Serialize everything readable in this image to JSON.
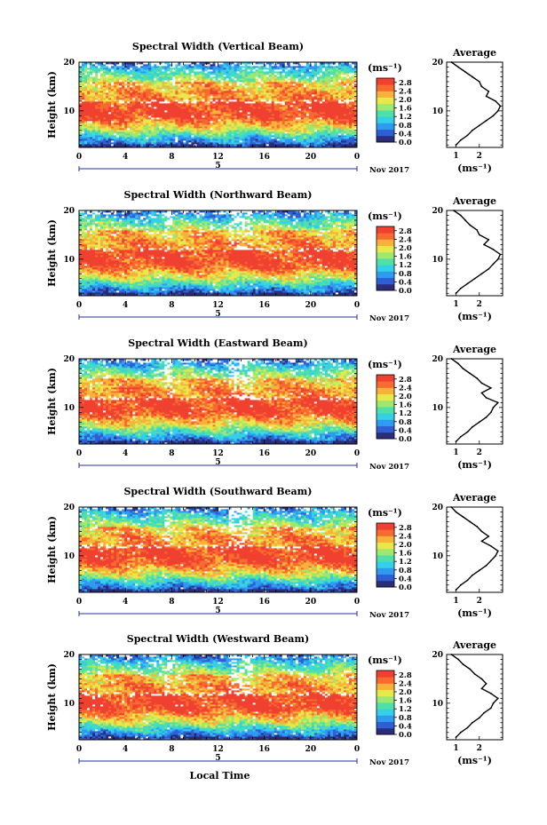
{
  "chart_data": [
    {
      "type": "heatmap",
      "title": "Spectral Width (Vertical Beam)",
      "ylabel": "Height (km)",
      "xticks": [
        "0",
        "4",
        "8",
        "12",
        "16",
        "20",
        "0"
      ],
      "yticks": [
        "10",
        "20"
      ],
      "xlim": [
        0,
        24
      ],
      "ylim": [
        2.5,
        20
      ],
      "date_day": "5",
      "date_label": "Nov 2017",
      "colorbar": {
        "unit": "(ms⁻¹)",
        "ticks": [
          "0.0",
          "0.4",
          "0.8",
          "1.2",
          "1.6",
          "2.0",
          "2.4",
          "2.8"
        ],
        "range": [
          0,
          3.0
        ]
      },
      "profile": {
        "title": "Average",
        "xlabel": "(ms⁻¹)",
        "xticks": [
          "1",
          "2"
        ],
        "yticks": [
          "10",
          "20"
        ],
        "xlim": [
          0.6,
          3.0
        ],
        "height_km": [
          3,
          4,
          5,
          6,
          7,
          8,
          9,
          10,
          11,
          12,
          13,
          14,
          15,
          16,
          17,
          18,
          19,
          20
        ],
        "width_ms": [
          1.0,
          1.2,
          1.5,
          1.7,
          2.0,
          2.3,
          2.6,
          2.8,
          2.9,
          2.7,
          2.3,
          2.4,
          2.1,
          2.0,
          1.7,
          1.4,
          1.1,
          0.8
        ]
      }
    },
    {
      "type": "heatmap",
      "title": "Spectral Width (Northward Beam)",
      "ylabel": "Height (km)",
      "xticks": [
        "0",
        "4",
        "8",
        "12",
        "16",
        "20",
        "0"
      ],
      "yticks": [
        "10",
        "20"
      ],
      "xlim": [
        0,
        24
      ],
      "ylim": [
        2.5,
        20
      ],
      "date_day": "5",
      "date_label": "Nov 2017",
      "colorbar": {
        "unit": "(ms⁻¹)",
        "ticks": [
          "0.0",
          "0.4",
          "0.8",
          "1.2",
          "1.6",
          "2.0",
          "2.4",
          "2.8"
        ],
        "range": [
          0,
          3.0
        ]
      },
      "profile": {
        "title": "Average",
        "xlabel": "(ms⁻¹)",
        "xticks": [
          "1",
          "2"
        ],
        "yticks": [
          "10",
          "20"
        ],
        "xlim": [
          0.6,
          3.0
        ],
        "height_km": [
          3,
          4,
          5,
          6,
          7,
          8,
          9,
          10,
          11,
          12,
          13,
          14,
          15,
          16,
          17,
          18,
          19,
          20
        ],
        "width_ms": [
          1.0,
          1.2,
          1.5,
          1.8,
          2.1,
          2.4,
          2.6,
          2.8,
          2.9,
          2.6,
          2.2,
          2.4,
          2.0,
          1.9,
          1.6,
          1.4,
          1.2,
          0.9
        ]
      }
    },
    {
      "type": "heatmap",
      "title": "Spectral Width (Eastward Beam)",
      "ylabel": "Height (km)",
      "xticks": [
        "0",
        "4",
        "8",
        "12",
        "16",
        "20",
        "0"
      ],
      "yticks": [
        "10",
        "20"
      ],
      "xlim": [
        0,
        24
      ],
      "ylim": [
        2.5,
        20
      ],
      "date_day": "5",
      "date_label": "Nov 2017",
      "colorbar": {
        "unit": "(ms⁻¹)",
        "ticks": [
          "0.0",
          "0.4",
          "0.8",
          "1.2",
          "1.6",
          "2.0",
          "2.4",
          "2.8"
        ],
        "range": [
          0,
          3.0
        ]
      },
      "profile": {
        "title": "Average",
        "xlabel": "(ms⁻¹)",
        "xticks": [
          "1",
          "2"
        ],
        "yticks": [
          "10",
          "20"
        ],
        "xlim": [
          0.6,
          3.0
        ],
        "height_km": [
          3,
          4,
          5,
          6,
          7,
          8,
          9,
          10,
          11,
          12,
          13,
          14,
          15,
          16,
          17,
          18,
          19,
          20
        ],
        "width_ms": [
          1.0,
          1.2,
          1.5,
          1.7,
          2.0,
          2.3,
          2.5,
          2.6,
          2.8,
          2.3,
          2.1,
          2.5,
          2.1,
          1.9,
          1.6,
          1.3,
          1.1,
          0.8
        ]
      }
    },
    {
      "type": "heatmap",
      "title": "Spectral Width (Southward Beam)",
      "ylabel": "Height (km)",
      "xticks": [
        "0",
        "4",
        "8",
        "12",
        "16",
        "20",
        "0"
      ],
      "yticks": [
        "10",
        "20"
      ],
      "xlim": [
        0,
        24
      ],
      "ylim": [
        2.5,
        20
      ],
      "date_day": "5",
      "date_label": "Nov 2017",
      "colorbar": {
        "unit": "(ms⁻¹)",
        "ticks": [
          "0.0",
          "0.4",
          "0.8",
          "1.2",
          "1.6",
          "2.0",
          "2.4",
          "2.8"
        ],
        "range": [
          0,
          3.0
        ]
      },
      "profile": {
        "title": "Average",
        "xlabel": "(ms⁻¹)",
        "xticks": [
          "1",
          "2"
        ],
        "yticks": [
          "10",
          "20"
        ],
        "xlim": [
          0.6,
          3.0
        ],
        "height_km": [
          3,
          4,
          5,
          6,
          7,
          8,
          9,
          10,
          11,
          12,
          13,
          14,
          15,
          16,
          17,
          18,
          19,
          20
        ],
        "width_ms": [
          1.0,
          1.2,
          1.5,
          1.7,
          2.0,
          2.3,
          2.5,
          2.7,
          2.8,
          2.5,
          2.1,
          2.4,
          2.1,
          1.9,
          1.6,
          1.3,
          1.0,
          0.8
        ]
      }
    },
    {
      "type": "heatmap",
      "title": "Spectral Width (Westward Beam)",
      "ylabel": "Height (km)",
      "xticks": [
        "0",
        "4",
        "8",
        "12",
        "16",
        "20",
        "0"
      ],
      "yticks": [
        "10",
        "20"
      ],
      "xlim": [
        0,
        24
      ],
      "ylim": [
        2.5,
        20
      ],
      "date_day": "5",
      "date_label": "Nov 2017",
      "xlabel": "Local Time",
      "colorbar": {
        "unit": "(ms⁻¹)",
        "ticks": [
          "0.0",
          "0.4",
          "0.8",
          "1.2",
          "1.6",
          "2.0",
          "2.4",
          "2.8"
        ],
        "range": [
          0,
          3.0
        ]
      },
      "profile": {
        "title": "Average",
        "xlabel": "(ms⁻¹)",
        "xticks": [
          "1",
          "2"
        ],
        "yticks": [
          "10",
          "20"
        ],
        "xlim": [
          0.6,
          3.0
        ],
        "height_km": [
          3,
          4,
          5,
          6,
          7,
          8,
          9,
          10,
          11,
          12,
          13,
          14,
          15,
          16,
          17,
          18,
          19,
          20
        ],
        "width_ms": [
          1.0,
          1.2,
          1.5,
          1.7,
          2.0,
          2.2,
          2.5,
          2.6,
          2.8,
          2.5,
          2.1,
          2.3,
          2.1,
          1.8,
          1.6,
          1.3,
          1.1,
          0.8
        ]
      }
    }
  ],
  "colormap": [
    "#2b2d78",
    "#2f5fd4",
    "#2f9bf0",
    "#34d0e8",
    "#4fe0a8",
    "#9ee870",
    "#e8e84a",
    "#f8b23a",
    "#f86a30",
    "#f04030"
  ]
}
